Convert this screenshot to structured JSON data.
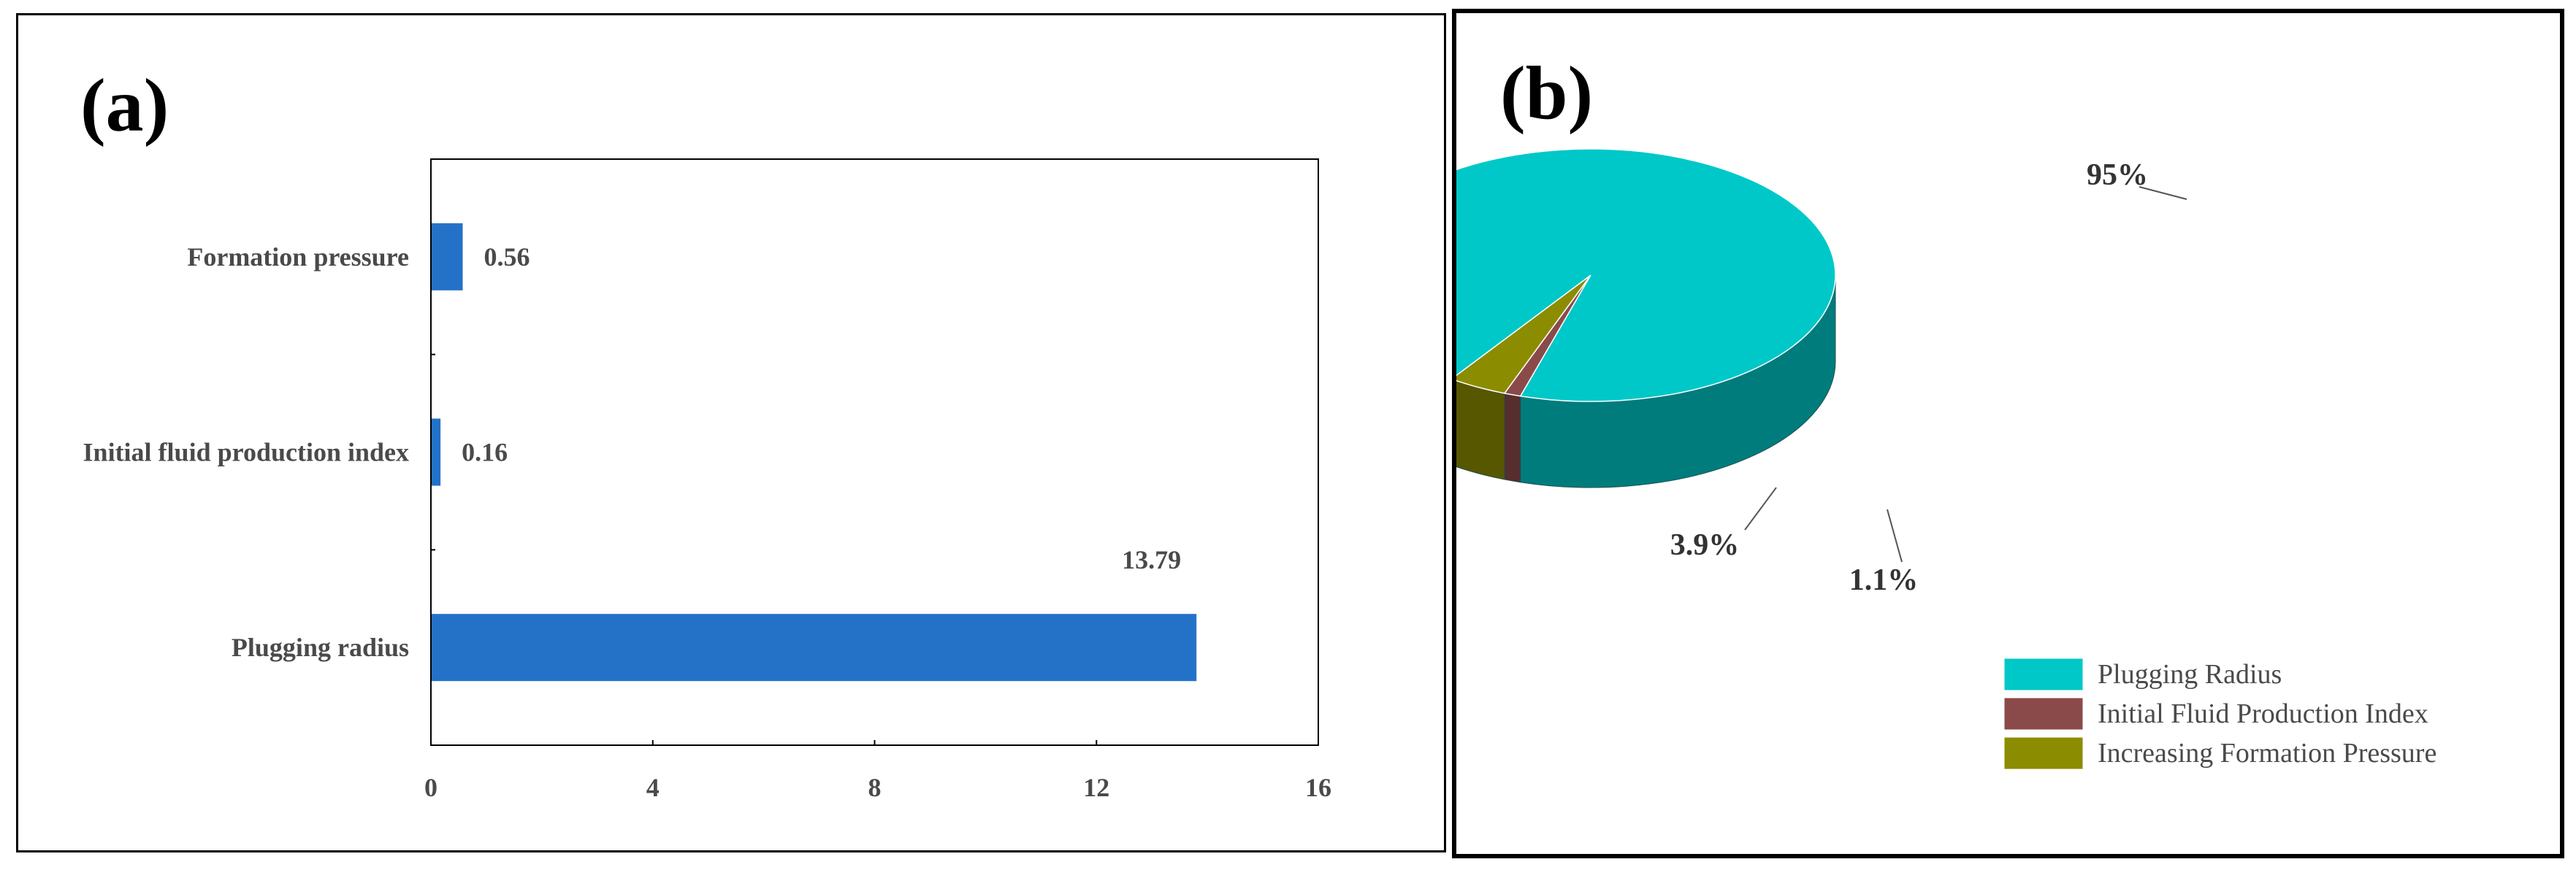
{
  "chart_data": [
    {
      "type": "bar",
      "orientation": "horizontal",
      "panel_label": "(a)",
      "categories": [
        "Formation pressure",
        "Initial fluid production index",
        "Plugging radius"
      ],
      "values": [
        0.56,
        0.16,
        13.79
      ],
      "data_labels": [
        "0.56",
        "0.16",
        "13.79"
      ],
      "xlim": [
        0,
        16
      ],
      "xticks": [
        0,
        4,
        8,
        12,
        16
      ],
      "bar_color": "#2472c8",
      "grid": false
    },
    {
      "type": "pie",
      "style": "3d",
      "panel_label": "(b)",
      "slices": [
        {
          "label": "Plugging Radius",
          "value": 95,
          "pct_label": "95%",
          "color": "#00c8c8"
        },
        {
          "label": "Initial Fluid Production Index",
          "value": 1.1,
          "pct_label": "1.1%",
          "color": "#8b4a4a"
        },
        {
          "label": "Increasing Formation Pressure",
          "value": 3.9,
          "pct_label": "3.9%",
          "color": "#8c8c00"
        }
      ],
      "legend_position": "bottom-right"
    }
  ]
}
